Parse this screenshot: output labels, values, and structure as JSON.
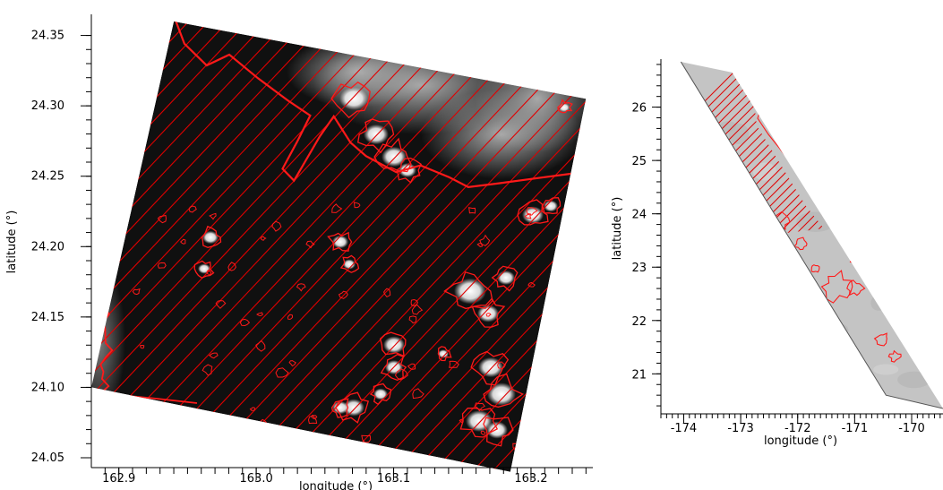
{
  "chart_data": [
    {
      "type": "image",
      "panel": "left",
      "xlabel": "longitude (°)",
      "ylabel": "latitude (°)",
      "xlim": [
        162.88,
        163.245
      ],
      "ylim": [
        24.043,
        24.365
      ],
      "xticks": [
        162.9,
        163.0,
        163.1,
        163.2
      ],
      "xtick_labels": [
        "162.9",
        "163.0",
        "163.1",
        "163.2"
      ],
      "yticks": [
        24.05,
        24.1,
        24.15,
        24.2,
        24.25,
        24.3,
        24.35
      ],
      "ytick_labels": [
        "24.05",
        "24.10",
        "24.15",
        "24.20",
        "24.25",
        "24.30",
        "24.35"
      ],
      "scene_corners": [
        [
          162.94,
          24.36
        ],
        [
          163.24,
          24.305
        ],
        [
          163.185,
          24.04
        ],
        [
          162.88,
          24.1
        ]
      ],
      "overlay": "red diagonal hatching with red cloud contours",
      "colors": {
        "hatch": "#e00000",
        "scene": "#101010",
        "cloud": "#f4f4f4",
        "sea_bright": "#9a9a9a"
      }
    },
    {
      "type": "image",
      "panel": "right",
      "xlabel": "longitude (°)",
      "ylabel": "latitude (°)",
      "xlim": [
        -174.4,
        -169.45
      ],
      "ylim": [
        20.25,
        26.9
      ],
      "xticks": [
        -174,
        -173,
        -172,
        -171,
        -170
      ],
      "xtick_labels": [
        "-174",
        "-173",
        "-172",
        "-171",
        "-170"
      ],
      "yticks": [
        21,
        22,
        23,
        24,
        25,
        26
      ],
      "ytick_labels": [
        "21",
        "22",
        "23",
        "24",
        "25",
        "26"
      ],
      "swath_corners": [
        [
          -174.05,
          26.85
        ],
        [
          -173.15,
          26.65
        ],
        [
          -169.45,
          20.35
        ],
        [
          -170.45,
          20.6
        ]
      ],
      "overlay": "red hatching on upper-left part of swath with red cloud contours",
      "colors": {
        "hatch": "#e00000",
        "swath": "#c4c4c4",
        "edge": "#555555"
      }
    }
  ]
}
